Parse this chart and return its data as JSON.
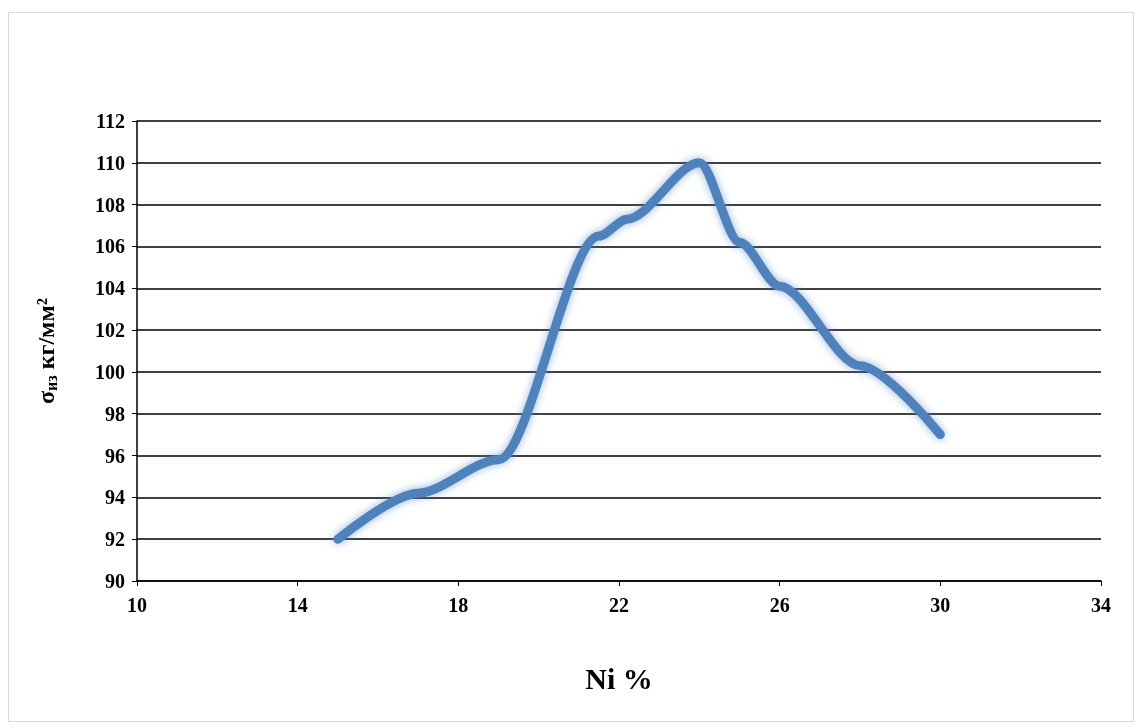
{
  "chart_data": {
    "type": "line",
    "xlabel": "Ni %",
    "ylabel": "σ$_{из}$ кг/мм²",
    "x": [
      15,
      17,
      19,
      21.5,
      22.2,
      24,
      25,
      26,
      28,
      30
    ],
    "series": [
      {
        "color": "#4f81bd",
        "values": [
          92,
          94.2,
          95.8,
          106.5,
          107.3,
          110,
          106.2,
          104.1,
          100.3,
          97
        ]
      }
    ],
    "xlim": [
      10,
      34
    ],
    "xticks": [
      10,
      14,
      18,
      22,
      26,
      30,
      34
    ],
    "ylim": [
      90,
      112
    ],
    "yticks": [
      90,
      92,
      94,
      96,
      98,
      100,
      102,
      104,
      106,
      108,
      110,
      112
    ],
    "grid": "y",
    "marker": "none",
    "line_style": "solid"
  }
}
